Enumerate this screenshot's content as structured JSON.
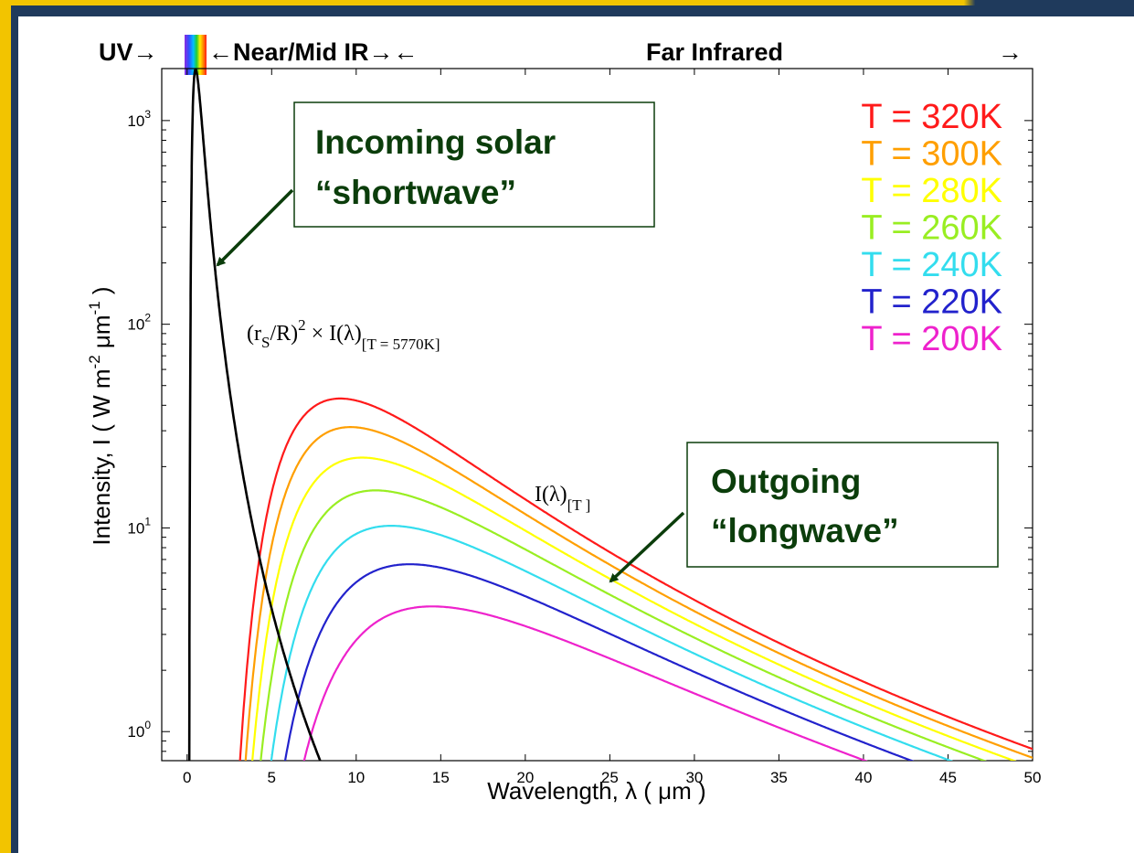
{
  "chart_data": {
    "type": "line",
    "xlabel": "Wavelength,  λ  ( μm )",
    "ylabel": "Intensity, I  ( W m-2 μm-1 )",
    "xlim": [
      -1.5,
      50
    ],
    "ylim": [
      0.72,
      1800
    ],
    "yscale": "log",
    "xticks": [
      0,
      5,
      10,
      15,
      20,
      25,
      30,
      35,
      40,
      45,
      50
    ],
    "yticks": [
      {
        "value": 1,
        "label": "10",
        "exp": "0"
      },
      {
        "value": 10,
        "label": "10",
        "exp": "1"
      },
      {
        "value": 100,
        "label": "10",
        "exp": "2"
      },
      {
        "value": 1000,
        "label": "10",
        "exp": "3"
      }
    ],
    "bands": {
      "uv": "UV",
      "near_mid_ir": "Near/Mid IR",
      "far_ir": "Far Infrared"
    },
    "solar_label": {
      "base": "(r",
      "sub_s": "S",
      "mid": "/R)",
      "sup": "2",
      "tail": " × I(λ)",
      "sub_t": "[T = 5770K]"
    },
    "planck_label": {
      "base": "I(λ)",
      "sub": "[T ]"
    },
    "annotations": [
      {
        "id": "solar",
        "lines": [
          "Incoming solar",
          "“shortwave”"
        ]
      },
      {
        "id": "longwave",
        "lines": [
          "Outgoing",
          "“longwave”"
        ]
      }
    ],
    "series": [
      {
        "legend": "T = 320K",
        "temperature": 320,
        "color": "#ff1a1a"
      },
      {
        "legend": "T = 300K",
        "temperature": 300,
        "color": "#ff9f00"
      },
      {
        "legend": "T = 280K",
        "temperature": 280,
        "color": "#ffff00"
      },
      {
        "legend": "T = 260K",
        "temperature": 260,
        "color": "#99ee22"
      },
      {
        "legend": "T = 240K",
        "temperature": 240,
        "color": "#33ddee"
      },
      {
        "legend": "T = 220K",
        "temperature": 220,
        "color": "#2222cc"
      },
      {
        "legend": "T = 200K",
        "temperature": 200,
        "color": "#ee22cc"
      }
    ],
    "solar_series": {
      "temperature": 5770,
      "scale": 2.165e-05,
      "color": "#000000"
    }
  }
}
